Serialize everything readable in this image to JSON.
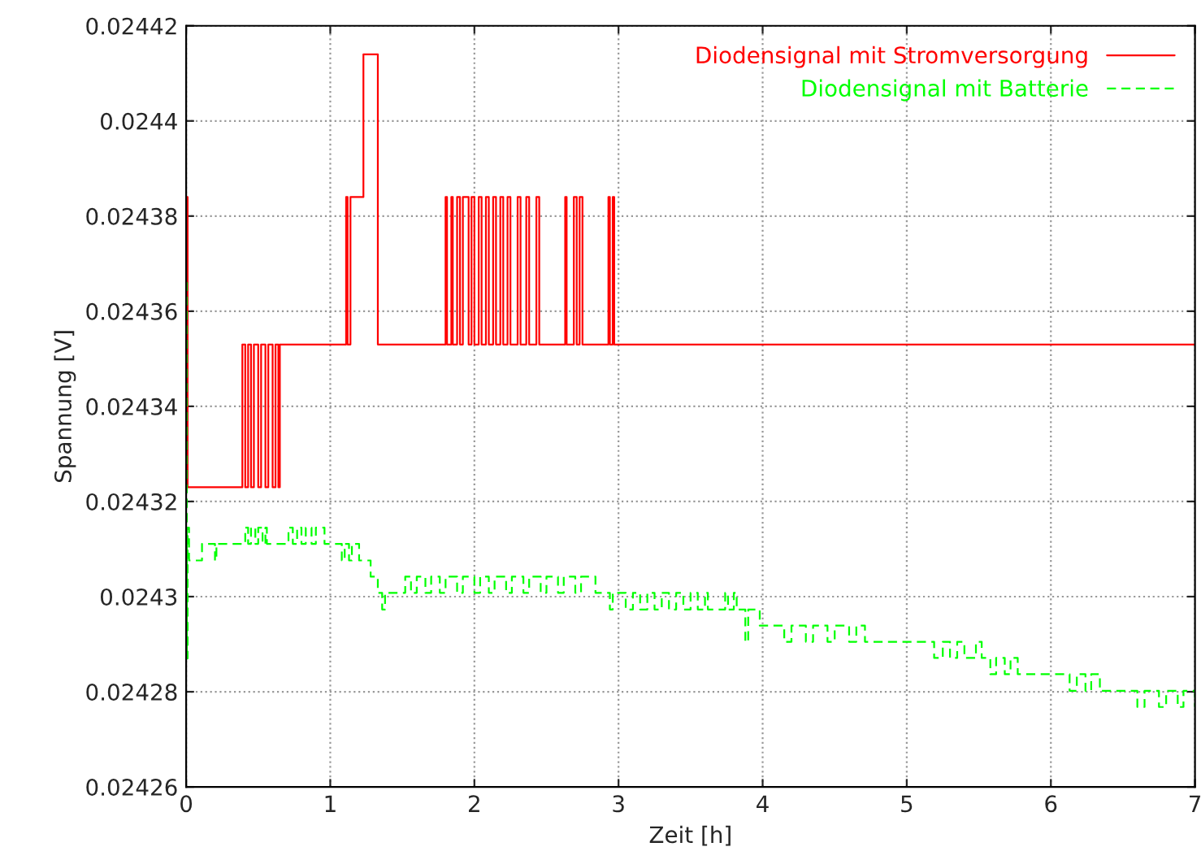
{
  "chart_data": {
    "type": "step",
    "xlabel": "Zeit [h]",
    "ylabel": "Spannung [V]",
    "xlim": [
      0,
      7
    ],
    "xticks": [
      0,
      1,
      2,
      3,
      4,
      5,
      6,
      7
    ],
    "ylim": [
      0.02426,
      0.02442
    ],
    "yticks": [
      0.02426,
      0.02428,
      0.0243,
      0.02432,
      0.02434,
      0.02436,
      0.02438,
      0.0244,
      0.02442
    ],
    "grid": true,
    "legend": "top right",
    "series": [
      {
        "name": "Diodensignal mit Stromversorgung",
        "color": "#ff0000",
        "line_style": "solid",
        "x": [
          0,
          0.01,
          0.39,
          0.41,
          0.43,
          0.45,
          0.47,
          0.5,
          0.52,
          0.55,
          0.57,
          0.6,
          0.62,
          0.64,
          0.65,
          1.11,
          1.12,
          1.14,
          1.23,
          1.33,
          1.8,
          1.81,
          1.84,
          1.85,
          1.88,
          1.9,
          1.92,
          1.96,
          1.98,
          2.0,
          2.03,
          2.05,
          2.08,
          2.1,
          2.13,
          2.15,
          2.18,
          2.2,
          2.23,
          2.25,
          2.3,
          2.32,
          2.36,
          2.38,
          2.43,
          2.45,
          2.63,
          2.64,
          2.69,
          2.71,
          2.73,
          2.75,
          2.93,
          2.94,
          2.96,
          2.97,
          7
        ],
        "values": [
          0.024384,
          0.024323,
          0.024353,
          0.024323,
          0.024353,
          0.024323,
          0.024353,
          0.024323,
          0.024353,
          0.024323,
          0.024353,
          0.024323,
          0.024353,
          0.024323,
          0.024353,
          0.024384,
          0.024353,
          0.024384,
          0.024414,
          0.024353,
          0.024384,
          0.024353,
          0.024384,
          0.024353,
          0.024384,
          0.024353,
          0.024384,
          0.024353,
          0.024384,
          0.024353,
          0.024384,
          0.024353,
          0.024384,
          0.024353,
          0.024384,
          0.024353,
          0.024384,
          0.024353,
          0.024384,
          0.024353,
          0.024384,
          0.024353,
          0.024384,
          0.024353,
          0.024384,
          0.024353,
          0.024384,
          0.024353,
          0.024384,
          0.024353,
          0.024384,
          0.024353,
          0.024384,
          0.024353,
          0.024384,
          0.024353,
          0.024353
        ]
      },
      {
        "name": "Diodensignal mit Batterie",
        "color": "#00ff00",
        "line_style": "dashed",
        "x": [
          0,
          0.005,
          0.01,
          0.02,
          0.11,
          0.2,
          0.21,
          0.41,
          0.43,
          0.45,
          0.48,
          0.5,
          0.53,
          0.55,
          0.56,
          0.71,
          0.74,
          0.77,
          0.8,
          0.83,
          0.87,
          0.9,
          0.96,
          1.08,
          1.1,
          1.13,
          1.15,
          1.2,
          1.28,
          1.33,
          1.36,
          1.38,
          1.52,
          1.56,
          1.6,
          1.66,
          1.7,
          1.76,
          1.8,
          1.88,
          1.92,
          2.0,
          2.04,
          2.1,
          2.14,
          2.22,
          2.26,
          2.34,
          2.38,
          2.46,
          2.5,
          2.58,
          2.62,
          2.7,
          2.74,
          2.84,
          2.94,
          2.96,
          3.05,
          3.1,
          3.15,
          3.2,
          3.25,
          3.3,
          3.35,
          3.4,
          3.45,
          3.5,
          3.55,
          3.6,
          3.62,
          3.74,
          3.76,
          3.8,
          3.82,
          3.88,
          3.9,
          3.98,
          4.15,
          4.2,
          4.3,
          4.35,
          4.45,
          4.5,
          4.6,
          4.65,
          4.71,
          5.19,
          5.25,
          5.3,
          5.35,
          5.4,
          5.48,
          5.52,
          5.58,
          5.62,
          5.68,
          5.72,
          5.77,
          6.13,
          6.18,
          6.24,
          6.28,
          6.34,
          6.6,
          6.65,
          6.75,
          6.8,
          6.88,
          6.92,
          7
        ],
        "values": [
          0.024366,
          0.024287,
          0.0243145,
          0.0243076,
          0.0243111,
          0.0243076,
          0.0243111,
          0.0243145,
          0.0243111,
          0.0243145,
          0.0243111,
          0.0243145,
          0.0243111,
          0.0243145,
          0.0243111,
          0.0243145,
          0.0243111,
          0.0243145,
          0.0243111,
          0.0243145,
          0.0243111,
          0.0243145,
          0.0243111,
          0.0243076,
          0.0243111,
          0.0243076,
          0.0243111,
          0.0243076,
          0.0243042,
          0.0243008,
          0.0242973,
          0.0243008,
          0.0243042,
          0.0243008,
          0.0243042,
          0.0243008,
          0.0243042,
          0.0243008,
          0.0243042,
          0.0243008,
          0.0243042,
          0.0243008,
          0.0243042,
          0.0243008,
          0.0243042,
          0.0243008,
          0.0243042,
          0.0243008,
          0.0243042,
          0.0243008,
          0.0243042,
          0.0243008,
          0.0243042,
          0.0243008,
          0.0243042,
          0.0243008,
          0.0242973,
          0.0243008,
          0.0242973,
          0.0243008,
          0.0242973,
          0.0243008,
          0.0242973,
          0.0243008,
          0.0242973,
          0.0243008,
          0.0242973,
          0.0243008,
          0.0242973,
          0.0243008,
          0.0242973,
          0.0243008,
          0.0242973,
          0.0243008,
          0.0242973,
          0.0242905,
          0.0242973,
          0.0242939,
          0.0242905,
          0.0242939,
          0.0242905,
          0.0242939,
          0.0242905,
          0.0242939,
          0.0242905,
          0.0242939,
          0.0242905,
          0.0242871,
          0.0242905,
          0.0242871,
          0.0242905,
          0.0242871,
          0.0242905,
          0.0242871,
          0.0242837,
          0.0242871,
          0.0242837,
          0.0242871,
          0.0242837,
          0.0242802,
          0.0242837,
          0.0242802,
          0.0242837,
          0.0242802,
          0.0242768,
          0.0242802,
          0.0242768,
          0.0242802,
          0.0242768,
          0.0242802,
          0.0242768
        ]
      }
    ]
  }
}
